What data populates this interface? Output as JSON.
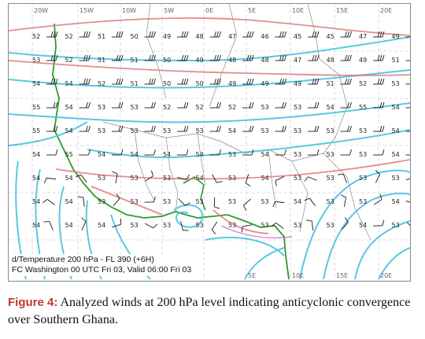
{
  "map": {
    "lon_labels": [
      "20W",
      "15W",
      "10W",
      "5W",
      "0E",
      "5E",
      "10E",
      "15E",
      "20E"
    ],
    "bottom_lon_labels": [
      "5E",
      "10E",
      "15E",
      "20E"
    ],
    "legend_line1": "d/Temperature  200 hPa - FL 390 (+6H)",
    "legend_line2": "FC Washington 00 UTC Fri 03, Valid 06:00 Fri 03",
    "temperature_rows": [
      [
        "52",
        "52",
        "51",
        "50",
        "49",
        "48",
        "47",
        "46",
        "45",
        "45",
        "47",
        "49"
      ],
      [
        "53",
        "52",
        "51",
        "51",
        "50",
        "49",
        "48",
        "48",
        "47",
        "48",
        "49",
        "51"
      ],
      [
        "54",
        "54",
        "52",
        "51",
        "50",
        "50",
        "49",
        "49",
        "49",
        "51",
        "52",
        "53"
      ],
      [
        "55",
        "54",
        "53",
        "53",
        "52",
        "52",
        "52",
        "53",
        "53",
        "54",
        "55",
        "54"
      ],
      [
        "55",
        "54",
        "53",
        "53",
        "53",
        "53",
        "54",
        "53",
        "53",
        "53",
        "53",
        "54"
      ],
      [
        "54",
        "55",
        "54",
        "54",
        "54",
        "54",
        "53",
        "54",
        "53",
        "53",
        "53",
        "54"
      ],
      [
        "54",
        "54",
        "53",
        "53",
        "53",
        "54",
        "53",
        "54",
        "53",
        "53",
        "53",
        "53"
      ],
      [
        "54",
        "54",
        "53",
        "53",
        "53",
        "53",
        "53",
        "53",
        "54",
        "53",
        "53",
        "54"
      ],
      [
        "54",
        "54",
        "54",
        "53",
        "53",
        "53",
        "53",
        "53",
        "53",
        "53",
        "54",
        "53"
      ]
    ]
  },
  "caption": {
    "label": "Figure 4:",
    "text": "Analyzed winds at 200 hPa level indicating anticyclonic convergence over Southern Ghana."
  }
}
